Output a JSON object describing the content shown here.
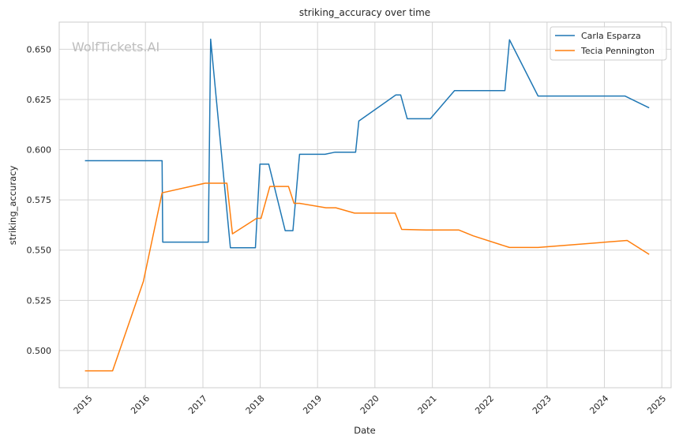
{
  "chart_data": {
    "type": "line",
    "title": "striking_accuracy over time",
    "xlabel": "Date",
    "ylabel": "striking_accuracy",
    "watermark": "WolfTickets.AI",
    "xlim": [
      "2014-07-01",
      "2025-03-01"
    ],
    "ylim": [
      0.4815,
      0.6635
    ],
    "x_ticks": [
      "2015",
      "2016",
      "2017",
      "2018",
      "2019",
      "2020",
      "2021",
      "2022",
      "2023",
      "2024",
      "2025"
    ],
    "y_ticks": [
      "0.500",
      "0.525",
      "0.550",
      "0.575",
      "0.600",
      "0.625",
      "0.650"
    ],
    "grid": true,
    "legend_position": "top-right",
    "series": [
      {
        "name": "Carla Esparza",
        "color": "#1f77b4",
        "points": [
          [
            "2014-12-12",
            0.5945
          ],
          [
            "2016-04-16",
            0.5945
          ],
          [
            "2016-04-20",
            0.554
          ],
          [
            "2017-02-04",
            0.554
          ],
          [
            "2017-02-19",
            0.655
          ],
          [
            "2017-06-25",
            0.5512
          ],
          [
            "2017-12-01",
            0.5512
          ],
          [
            "2017-12-30",
            0.5928
          ],
          [
            "2018-02-24",
            0.5928
          ],
          [
            "2018-06-09",
            0.5597
          ],
          [
            "2018-07-28",
            0.5597
          ],
          [
            "2018-09-08",
            0.5977
          ],
          [
            "2019-02-17",
            0.5977
          ],
          [
            "2019-04-20",
            0.5987
          ],
          [
            "2019-08-31",
            0.5987
          ],
          [
            "2019-09-21",
            0.6143
          ],
          [
            "2020-05-13",
            0.6272
          ],
          [
            "2020-06-13",
            0.6272
          ],
          [
            "2020-07-25",
            0.6154
          ],
          [
            "2020-12-19",
            0.6154
          ],
          [
            "2021-05-22",
            0.6294
          ],
          [
            "2022-04-08",
            0.6294
          ],
          [
            "2022-05-07",
            0.6547
          ],
          [
            "2022-11-05",
            0.6267
          ],
          [
            "2024-05-11",
            0.6267
          ],
          [
            "2024-10-12",
            0.6208
          ]
        ]
      },
      {
        "name": "Tecia Pennington",
        "color": "#ff7f0e",
        "points": [
          [
            "2014-12-12",
            0.4899
          ],
          [
            "2015-06-06",
            0.4899
          ],
          [
            "2015-12-19",
            0.5344
          ],
          [
            "2016-04-16",
            0.5785
          ],
          [
            "2017-01-15",
            0.5833
          ],
          [
            "2017-06-03",
            0.5833
          ],
          [
            "2017-07-08",
            0.5581
          ],
          [
            "2017-12-09",
            0.5658
          ],
          [
            "2018-01-06",
            0.5658
          ],
          [
            "2018-03-03",
            0.5817
          ],
          [
            "2018-06-30",
            0.5817
          ],
          [
            "2018-08-04",
            0.5733
          ],
          [
            "2018-09-08",
            0.5733
          ],
          [
            "2019-02-23",
            0.5711
          ],
          [
            "2019-04-27",
            0.5711
          ],
          [
            "2019-08-24",
            0.5684
          ],
          [
            "2020-05-09",
            0.5684
          ],
          [
            "2020-06-20",
            0.5603
          ],
          [
            "2020-11-21",
            0.56
          ],
          [
            "2021-06-19",
            0.56
          ],
          [
            "2021-09-18",
            0.5571
          ],
          [
            "2022-05-07",
            0.5513
          ],
          [
            "2022-11-05",
            0.5513
          ],
          [
            "2024-05-25",
            0.5548
          ],
          [
            "2024-10-12",
            0.5479
          ]
        ]
      }
    ]
  }
}
